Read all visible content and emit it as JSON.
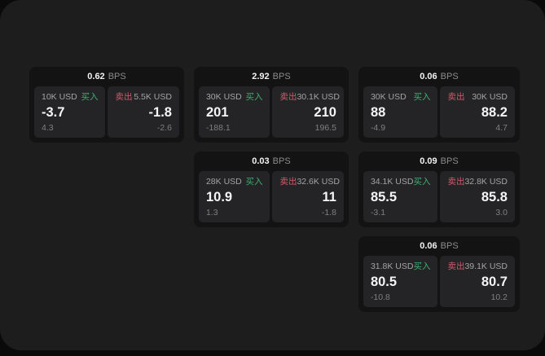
{
  "labels": {
    "buy": "买入",
    "sell": "卖出",
    "bps_unit": "BPS"
  },
  "colors": {
    "buy": "#3fae6e",
    "sell": "#cf5b6b",
    "surface": "#1d1d1e",
    "card": "#131314",
    "panel": "#242427"
  },
  "cards": [
    {
      "bps": "0.62",
      "buy": {
        "amount": "10K USD",
        "value": "-3.7",
        "delta": "4.3"
      },
      "sell": {
        "amount": "5.5K USD",
        "value": "-1.8",
        "delta": "-2.6"
      }
    },
    {
      "bps": "2.92",
      "buy": {
        "amount": "30K USD",
        "value": "201",
        "delta": "-188.1"
      },
      "sell": {
        "amount": "30.1K USD",
        "value": "210",
        "delta": "196.5"
      }
    },
    {
      "bps": "0.06",
      "buy": {
        "amount": "30K USD",
        "value": "88",
        "delta": "-4.9"
      },
      "sell": {
        "amount": "30K USD",
        "value": "88.2",
        "delta": "4.7"
      }
    },
    {
      "bps": "0.03",
      "buy": {
        "amount": "28K USD",
        "value": "10.9",
        "delta": "1.3"
      },
      "sell": {
        "amount": "32.6K USD",
        "value": "11",
        "delta": "-1.8"
      }
    },
    {
      "bps": "0.09",
      "buy": {
        "amount": "34.1K USD",
        "value": "85.5",
        "delta": "-3.1"
      },
      "sell": {
        "amount": "32.8K USD",
        "value": "85.8",
        "delta": "3.0"
      }
    },
    {
      "bps": "0.06",
      "buy": {
        "amount": "31.8K USD",
        "value": "80.5",
        "delta": "-10.8"
      },
      "sell": {
        "amount": "39.1K USD",
        "value": "80.7",
        "delta": "10.2"
      }
    }
  ]
}
